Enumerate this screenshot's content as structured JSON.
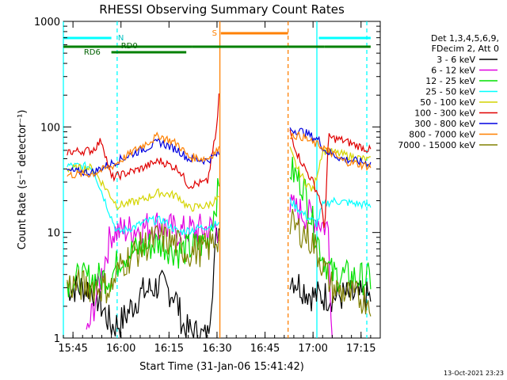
{
  "chart_data": {
    "type": "line",
    "title": "RHESSI Observing Summary Count Rates",
    "xlabel": "Start Time (31-Jan-06 15:41:42)",
    "ylabel": "Count Rate (s⁻¹ detector⁻¹)",
    "xlim": [
      15.7,
      17.35
    ],
    "ylim": [
      1,
      1000
    ],
    "yscale": "log",
    "grid": false,
    "x_ticks": [
      {
        "t": 15.75,
        "label": "15:45"
      },
      {
        "t": 16.0,
        "label": "16:00"
      },
      {
        "t": 16.25,
        "label": "16:15"
      },
      {
        "t": 16.5,
        "label": "16:30"
      },
      {
        "t": 16.75,
        "label": "16:45"
      },
      {
        "t": 17.0,
        "label": "17:00"
      },
      {
        "t": 17.25,
        "label": "17:15"
      }
    ],
    "y_ticks": [
      {
        "v": 1,
        "label": "1"
      },
      {
        "v": 10,
        "label": "10"
      },
      {
        "v": 100,
        "label": "100"
      },
      {
        "v": 1000,
        "label": "1000"
      }
    ],
    "legend": {
      "placement": "right",
      "header": [
        "Det 1,3,4,5,6,9,",
        "FDecim 2, Att 0"
      ],
      "entries": [
        {
          "label": "3 - 6 keV",
          "color": "#000000"
        },
        {
          "label": "6 - 12 keV",
          "color": "#e000e0"
        },
        {
          "label": "12 - 25 keV",
          "color": "#00e000"
        },
        {
          "label": "25 - 50 keV",
          "color": "#00ffff"
        },
        {
          "label": "50 - 100 keV",
          "color": "#d4d400"
        },
        {
          "label": "100 - 300 keV",
          "color": "#e00000"
        },
        {
          "label": "300 - 800 keV",
          "color": "#0000e0"
        },
        {
          "label": "800 - 7000 keV",
          "color": "#ff8000"
        },
        {
          "label": "7000 - 15000 keV",
          "color": "#808000"
        }
      ]
    },
    "flags": [
      {
        "label": "N",
        "color": "#00ffff",
        "segments": [
          [
            15.7,
            15.95
          ],
          [
            17.03,
            17.3
          ]
        ]
      },
      {
        "label": "RD0",
        "color": "#008000",
        "segments": [
          [
            15.7,
            16.37
          ],
          [
            16.37,
            16.87
          ],
          [
            16.87,
            17.06
          ],
          [
            17.06,
            17.3
          ]
        ]
      },
      {
        "label": "RD6",
        "color": "#008000",
        "segments": [
          [
            15.95,
            16.34
          ]
        ]
      },
      {
        "label": "S",
        "color": "#ff8000",
        "segments": [
          [
            16.52,
            16.87
          ]
        ]
      }
    ],
    "vlines": [
      {
        "t": 15.7,
        "color": "#00ffff",
        "style": "solid"
      },
      {
        "t": 15.98,
        "color": "#00ffff",
        "style": "dashed"
      },
      {
        "t": 16.515,
        "color": "#ff8000",
        "style": "solid"
      },
      {
        "t": 16.87,
        "color": "#ff8000",
        "style": "dashed"
      },
      {
        "t": 17.02,
        "color": "#00ffff",
        "style": "solid"
      },
      {
        "t": 17.28,
        "color": "#00ffff",
        "style": "dashed"
      }
    ],
    "segments": [
      [
        15.72,
        16.51
      ],
      [
        16.88,
        17.3
      ]
    ],
    "series": [
      {
        "name": "3 - 6 keV",
        "color": "#000000",
        "values": [
          [
            15.72,
            3
          ],
          [
            15.85,
            3
          ],
          [
            15.95,
            1.3
          ],
          [
            16.0,
            1.4
          ],
          [
            16.1,
            2.6
          ],
          [
            16.2,
            3.2
          ],
          [
            16.28,
            2.6
          ],
          [
            16.33,
            1.2
          ],
          [
            16.45,
            1.0
          ],
          [
            16.5,
            10
          ],
          [
            16.51,
            11
          ],
          [
            16.88,
            4
          ],
          [
            16.93,
            3.2
          ],
          [
            17.0,
            2.5
          ],
          [
            17.1,
            2.5
          ],
          [
            17.2,
            2.5
          ],
          [
            17.3,
            2.4
          ]
        ]
      },
      {
        "name": "6 - 12 keV",
        "color": "#e000e0",
        "values": [
          [
            15.82,
            1
          ],
          [
            15.95,
            10
          ],
          [
            16.1,
            11
          ],
          [
            16.2,
            12
          ],
          [
            16.3,
            10
          ],
          [
            16.35,
            10.5
          ],
          [
            16.5,
            11
          ],
          [
            16.88,
            17
          ],
          [
            16.92,
            16
          ],
          [
            16.96,
            15
          ],
          [
            17.0,
            14
          ],
          [
            17.03,
            13
          ],
          [
            17.05,
            12
          ],
          [
            17.08,
            11
          ],
          [
            17.1,
            1
          ]
        ]
      },
      {
        "name": "12 - 25 keV",
        "color": "#00e000",
        "values": [
          [
            15.72,
            3.5
          ],
          [
            15.95,
            3.8
          ],
          [
            16.0,
            6
          ],
          [
            16.1,
            7
          ],
          [
            16.2,
            8
          ],
          [
            16.3,
            6.5
          ],
          [
            16.35,
            7
          ],
          [
            16.45,
            8
          ],
          [
            16.5,
            22
          ],
          [
            16.51,
            25
          ],
          [
            16.88,
            40
          ],
          [
            16.95,
            28
          ],
          [
            17.0,
            12
          ],
          [
            17.05,
            6
          ],
          [
            17.1,
            4
          ],
          [
            17.2,
            3.8
          ],
          [
            17.3,
            3.6
          ]
        ]
      },
      {
        "name": "25 - 50 keV",
        "color": "#00ffff",
        "values": [
          [
            15.72,
            43
          ],
          [
            15.85,
            42
          ],
          [
            15.98,
            10
          ],
          [
            16.05,
            11
          ],
          [
            16.15,
            13
          ],
          [
            16.22,
            13
          ],
          [
            16.3,
            10
          ],
          [
            16.35,
            10.5
          ],
          [
            16.5,
            12
          ],
          [
            16.88,
            20
          ],
          [
            16.95,
            15
          ],
          [
            17.02,
            12
          ],
          [
            17.05,
            18
          ],
          [
            17.1,
            20
          ],
          [
            17.2,
            19
          ],
          [
            17.3,
            18
          ]
        ]
      },
      {
        "name": "50 - 100 keV",
        "color": "#d4d400",
        "values": [
          [
            15.72,
            40
          ],
          [
            15.85,
            41
          ],
          [
            15.98,
            18
          ],
          [
            16.1,
            20
          ],
          [
            16.2,
            24
          ],
          [
            16.3,
            22
          ],
          [
            16.35,
            17
          ],
          [
            16.45,
            18
          ],
          [
            16.88,
            60
          ],
          [
            16.92,
            40
          ],
          [
            16.96,
            30
          ],
          [
            17.0,
            25
          ],
          [
            17.05,
            60
          ],
          [
            17.15,
            55
          ],
          [
            17.3,
            48
          ]
        ]
      },
      {
        "name": "100 - 300 keV",
        "color": "#e00000",
        "values": [
          [
            15.72,
            58
          ],
          [
            15.85,
            60
          ],
          [
            15.9,
            75
          ],
          [
            15.95,
            33
          ],
          [
            16.1,
            40
          ],
          [
            16.2,
            48
          ],
          [
            16.3,
            40
          ],
          [
            16.35,
            28
          ],
          [
            16.45,
            30
          ],
          [
            16.5,
            100
          ],
          [
            16.51,
            200
          ],
          [
            16.88,
            90
          ],
          [
            16.92,
            55
          ],
          [
            16.96,
            40
          ],
          [
            17.0,
            30
          ],
          [
            17.04,
            20
          ],
          [
            17.06,
            10
          ],
          [
            17.08,
            80
          ],
          [
            17.15,
            75
          ],
          [
            17.3,
            60
          ]
        ]
      },
      {
        "name": "300 - 800 keV",
        "color": "#0000e0",
        "values": [
          [
            15.72,
            38
          ],
          [
            15.85,
            37
          ],
          [
            15.95,
            45
          ],
          [
            16.1,
            60
          ],
          [
            16.2,
            72
          ],
          [
            16.3,
            60
          ],
          [
            16.35,
            50
          ],
          [
            16.45,
            48
          ],
          [
            16.5,
            55
          ],
          [
            16.88,
            95
          ],
          [
            16.95,
            90
          ],
          [
            17.0,
            80
          ],
          [
            17.03,
            75
          ],
          [
            17.06,
            60
          ],
          [
            17.15,
            50
          ],
          [
            17.3,
            45
          ]
        ]
      },
      {
        "name": "800 - 7000 keV",
        "color": "#ff8000",
        "values": [
          [
            15.72,
            35
          ],
          [
            15.85,
            36
          ],
          [
            15.95,
            42
          ],
          [
            16.1,
            65
          ],
          [
            16.2,
            83
          ],
          [
            16.3,
            68
          ],
          [
            16.35,
            52
          ],
          [
            16.45,
            50
          ],
          [
            16.5,
            60
          ],
          [
            16.88,
            85
          ],
          [
            16.95,
            80
          ],
          [
            17.0,
            70
          ],
          [
            17.05,
            65
          ],
          [
            17.15,
            48
          ],
          [
            17.3,
            42
          ]
        ]
      },
      {
        "name": "7000 - 15000 keV",
        "color": "#808000",
        "values": [
          [
            15.72,
            3.2
          ],
          [
            15.95,
            3.0
          ],
          [
            16.0,
            5
          ],
          [
            16.1,
            7
          ],
          [
            16.2,
            9
          ],
          [
            16.3,
            7.5
          ],
          [
            16.35,
            6.5
          ],
          [
            16.45,
            7
          ],
          [
            16.5,
            9
          ],
          [
            16.88,
            12
          ],
          [
            16.95,
            10
          ],
          [
            17.0,
            8
          ],
          [
            17.05,
            5
          ],
          [
            17.1,
            3
          ],
          [
            17.2,
            2.5
          ],
          [
            17.3,
            2.3
          ]
        ]
      }
    ]
  },
  "timestamp": "13-Oct-2021 23:23"
}
